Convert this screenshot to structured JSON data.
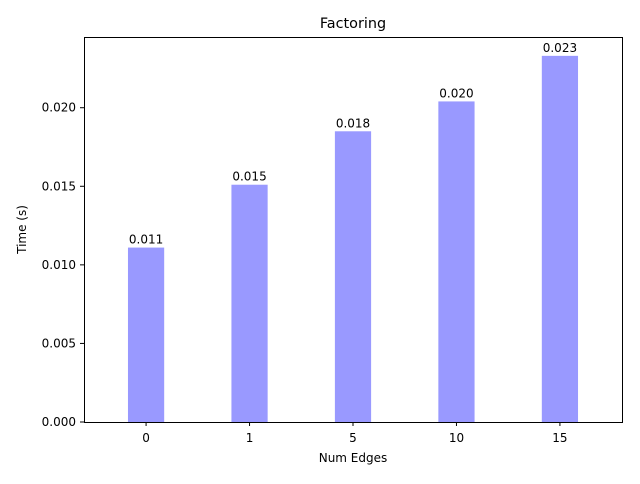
{
  "chart_data": {
    "type": "bar",
    "title": "Factoring",
    "xlabel": "Num Edges",
    "ylabel": "Time (s)",
    "categories": [
      "0",
      "1",
      "5",
      "10",
      "15"
    ],
    "values": [
      0.0111,
      0.0151,
      0.0185,
      0.0204,
      0.0233
    ],
    "value_labels": [
      "0.011",
      "0.015",
      "0.018",
      "0.020",
      "0.023"
    ],
    "yticks": [
      0.0,
      0.005,
      0.01,
      0.015,
      0.02
    ],
    "ytick_labels": [
      "0.000",
      "0.005",
      "0.010",
      "0.015",
      "0.020"
    ],
    "ylim": [
      0,
      0.0245
    ],
    "grid": false,
    "legend": "none",
    "bar_color": "#9999ff"
  }
}
